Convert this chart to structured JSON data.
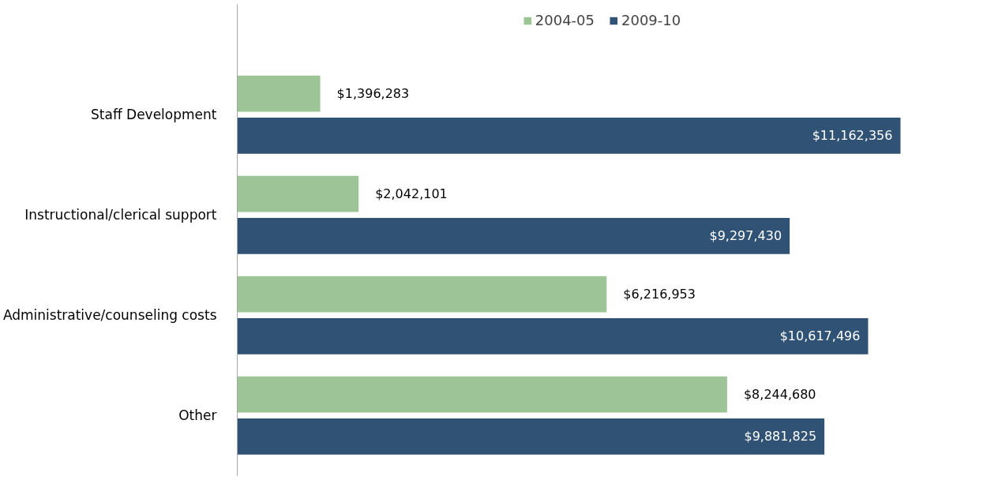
{
  "chart_data": {
    "type": "bar",
    "orientation": "horizontal",
    "legend": "top",
    "grid": false,
    "categories": [
      "Staff Development",
      "Instructional/clerical support",
      "Administrative/counseling costs",
      "Other"
    ],
    "series": [
      {
        "name": "2004-05",
        "color": "#9dc497",
        "values": [
          1396283,
          2042101,
          6216953,
          8244680
        ],
        "value_labels": [
          "$1,396,283",
          "$2,042,101",
          "$6,216,953",
          "$8,244,680"
        ]
      },
      {
        "name": "2009-10",
        "color": "#2f5275",
        "values": [
          11162356,
          9297430,
          10617496,
          9881825
        ],
        "value_labels": [
          "$11,162,356",
          "$9,297,430",
          "$10,617,496",
          "$9,881,825"
        ]
      }
    ]
  }
}
